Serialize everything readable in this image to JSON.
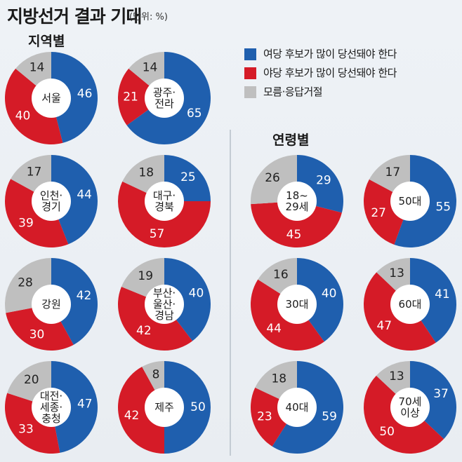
{
  "title": "지방선거 결과 기대",
  "unit": "(단위: %)",
  "sections": {
    "region": "지역별",
    "age": "연령별"
  },
  "colors": {
    "ruling": "#1f5fae",
    "opposition": "#d51b27",
    "unsure": "#bfbfbf"
  },
  "legend": [
    {
      "key": "ruling",
      "label": "여당 후보가 많이 당선돼야 한다",
      "color": "#1f5fae"
    },
    {
      "key": "opposition",
      "label": "야당 후보가 많이 당선돼야 한다",
      "color": "#d51b27"
    },
    {
      "key": "unsure",
      "label": "모름·응답거절",
      "color": "#bfbfbf"
    }
  ],
  "chart_data": {
    "type": "pie",
    "series_order": [
      "여당 후보가 많이 당선돼야 한다",
      "야당 후보가 많이 당선돼야 한다",
      "모름·응답거절"
    ],
    "groups": [
      {
        "section": "지역별",
        "label": [
          "서울"
        ],
        "values": [
          46,
          40,
          14
        ]
      },
      {
        "section": "지역별",
        "label": [
          "광주·",
          "전라"
        ],
        "values": [
          65,
          21,
          14
        ]
      },
      {
        "section": "지역별",
        "label": [
          "인천·",
          "경기"
        ],
        "values": [
          44,
          39,
          17
        ]
      },
      {
        "section": "지역별",
        "label": [
          "대구·",
          "경북"
        ],
        "values": [
          25,
          57,
          18
        ]
      },
      {
        "section": "지역별",
        "label": [
          "강원"
        ],
        "values": [
          42,
          30,
          28
        ]
      },
      {
        "section": "지역별",
        "label": [
          "부산·",
          "울산·",
          "경남"
        ],
        "values": [
          40,
          42,
          19
        ]
      },
      {
        "section": "지역별",
        "label": [
          "대전·",
          "세종·",
          "충청"
        ],
        "values": [
          47,
          33,
          20
        ]
      },
      {
        "section": "지역별",
        "label": [
          "제주"
        ],
        "values": [
          50,
          42,
          8
        ]
      },
      {
        "section": "연령별",
        "label": [
          "18~",
          "29세"
        ],
        "values": [
          29,
          45,
          26
        ]
      },
      {
        "section": "연령별",
        "label": [
          "50대"
        ],
        "values": [
          55,
          27,
          17
        ]
      },
      {
        "section": "연령별",
        "label": [
          "30대"
        ],
        "values": [
          40,
          44,
          16
        ]
      },
      {
        "section": "연령별",
        "label": [
          "60대"
        ],
        "values": [
          41,
          47,
          13
        ]
      },
      {
        "section": "연령별",
        "label": [
          "40대"
        ],
        "values": [
          59,
          23,
          18
        ]
      },
      {
        "section": "연령별",
        "label": [
          "70세",
          "이상"
        ],
        "values": [
          37,
          50,
          13
        ]
      }
    ]
  }
}
